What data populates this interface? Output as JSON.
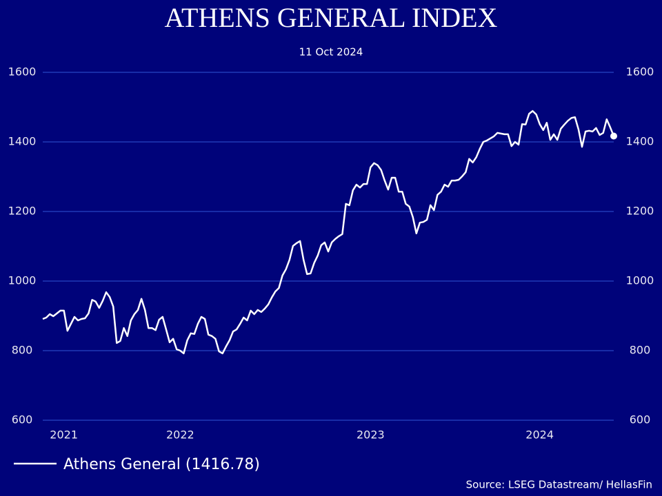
{
  "chart_data": {
    "type": "line",
    "title": "ATHENS GENERAL INDEX",
    "subtitle": "11 Oct 2024",
    "source": "Source: LSEG Datastream/ HellasFin",
    "categories": [
      null,
      null,
      null,
      null,
      null,
      null,
      "2021",
      null,
      null,
      null,
      null,
      null,
      null,
      null,
      null,
      null,
      null,
      null,
      null,
      null,
      null,
      null,
      null,
      null,
      null,
      null,
      null,
      null,
      null,
      null,
      null,
      null,
      null,
      null,
      null,
      null,
      null,
      null,
      null,
      "2022",
      null,
      null,
      null,
      null,
      null,
      null,
      null,
      null,
      null,
      null,
      null,
      null,
      null,
      null,
      null,
      null,
      null,
      null,
      null,
      null,
      null,
      null,
      null,
      null,
      null,
      null,
      null,
      null,
      null,
      null,
      null,
      null,
      null,
      null,
      null,
      null,
      null,
      null,
      null,
      null,
      null,
      null,
      null,
      null,
      null,
      null,
      null,
      null,
      null,
      null,
      null,
      null,
      null,
      "2023",
      null,
      null,
      null,
      null,
      null,
      null,
      null,
      null,
      null,
      null,
      null,
      null,
      null,
      null,
      null,
      null,
      null,
      null,
      null,
      null,
      null,
      null,
      null,
      null,
      null,
      null,
      null,
      null,
      null,
      null,
      null,
      null,
      null,
      null,
      null,
      null,
      null,
      null,
      null,
      null,
      null,
      null,
      null,
      null,
      null,
      null,
      null,
      "2024",
      null,
      null,
      null,
      null,
      null,
      null,
      null,
      null,
      null,
      null,
      null,
      null,
      null,
      null,
      null,
      null,
      null,
      null,
      null,
      null,
      null
    ],
    "series": [
      {
        "name": "Athens General (1416.78)",
        "color": "#ffffff",
        "values": [
          891,
          895,
          905,
          899,
          907,
          915,
          915,
          857,
          877,
          897,
          887,
          891,
          893,
          907,
          946,
          941,
          923,
          943,
          968,
          954,
          927,
          822,
          828,
          865,
          842,
          887,
          905,
          917,
          949,
          917,
          865,
          865,
          859,
          889,
          897,
          861,
          824,
          834,
          804,
          800,
          792,
          830,
          850,
          848,
          877,
          897,
          891,
          846,
          842,
          834,
          798,
          792,
          812,
          830,
          855,
          861,
          877,
          895,
          887,
          915,
          905,
          917,
          911,
          921,
          933,
          953,
          970,
          980,
          1016,
          1034,
          1061,
          1101,
          1109,
          1115,
          1061,
          1020,
          1022,
          1052,
          1073,
          1103,
          1111,
          1085,
          1111,
          1121,
          1129,
          1135,
          1222,
          1218,
          1261,
          1277,
          1269,
          1279,
          1279,
          1327,
          1339,
          1333,
          1319,
          1289,
          1263,
          1297,
          1297,
          1257,
          1257,
          1222,
          1214,
          1184,
          1137,
          1168,
          1170,
          1176,
          1218,
          1204,
          1248,
          1257,
          1277,
          1271,
          1289,
          1289,
          1291,
          1301,
          1313,
          1351,
          1341,
          1356,
          1380,
          1400,
          1404,
          1410,
          1416,
          1426,
          1424,
          1422,
          1422,
          1388,
          1400,
          1392,
          1451,
          1450,
          1481,
          1489,
          1479,
          1451,
          1434,
          1455,
          1406,
          1422,
          1406,
          1438,
          1450,
          1461,
          1469,
          1471,
          1436,
          1386,
          1430,
          1432,
          1430,
          1440,
          1420,
          1426,
          1465,
          1442,
          1416.78
        ]
      }
    ],
    "ylim": [
      600,
      1600
    ],
    "yticks": [
      600,
      800,
      1000,
      1200,
      1400,
      1600
    ],
    "y2lim": [
      600,
      1600
    ],
    "y2ticks": [
      600,
      800,
      1000,
      1200,
      1400,
      1600
    ],
    "grid": true,
    "grid_color": "#2f55d4"
  }
}
